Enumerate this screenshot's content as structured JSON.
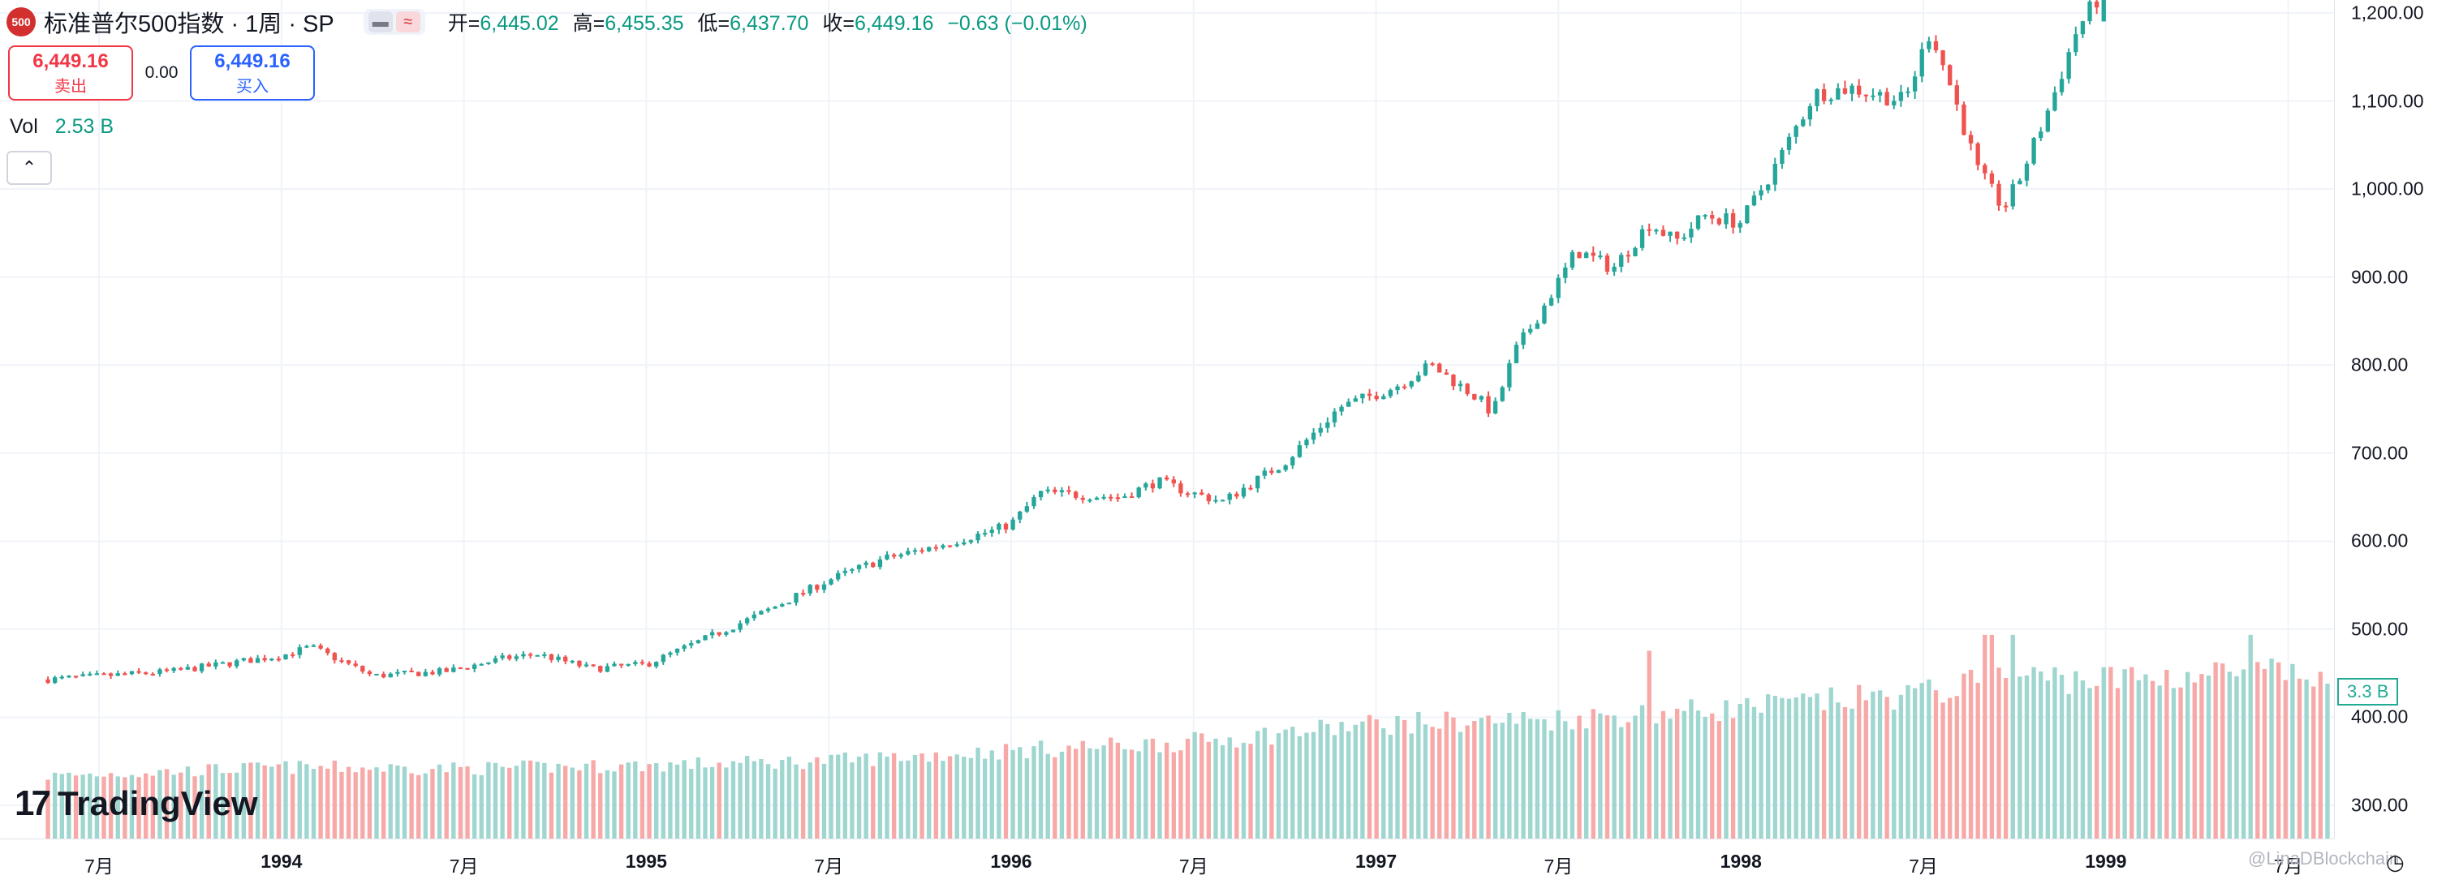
{
  "header": {
    "symbol_badge": "500",
    "title": "标准普尔500指数 · 1周 · SP",
    "mode_icons": [
      "dash-icon",
      "wave-icon"
    ],
    "ohlc": [
      {
        "label": "开=",
        "value": "6,445.02"
      },
      {
        "label": "高=",
        "value": "6,455.35"
      },
      {
        "label": "低=",
        "value": "6,437.70"
      },
      {
        "label": "收=",
        "value": "6,449.16"
      },
      {
        "label": "",
        "value": "−0.63 (−0.01%)"
      }
    ]
  },
  "trade": {
    "sell_price": "6,449.16",
    "sell_label": "卖出",
    "spread": "0.00",
    "buy_price": "6,449.16",
    "buy_label": "买入"
  },
  "volume": {
    "label": "Vol",
    "value": "2.53 B",
    "axis_tag": "3.3 B"
  },
  "logo": {
    "mark": "17",
    "text": "TradingView"
  },
  "watermark": "@LinaDBlockchain",
  "colors": {
    "up": "#26a69a",
    "down": "#ef5350",
    "vol_up": "#9fd6d0",
    "vol_down": "#f7a9a7",
    "grid": "#f0f3fa"
  },
  "chart_data": {
    "type": "candlestick",
    "title": "标准普尔500指数 · 1周 · SP",
    "interval": "1周",
    "xlabel": "",
    "ylabel": "",
    "price_axis": {
      "ticks": [
        "1,200.00",
        "1,100.00",
        "1,000.00",
        "900.00",
        "800.00",
        "700.00",
        "600.00",
        "500.00",
        "400.00",
        "300.00"
      ],
      "ylim": [
        285,
        1218
      ]
    },
    "time_axis": [
      {
        "label": "7月",
        "year": false,
        "x": 1993.5
      },
      {
        "label": "1994",
        "year": true,
        "x": 1994.0
      },
      {
        "label": "7月",
        "year": false,
        "x": 1994.5
      },
      {
        "label": "1995",
        "year": true,
        "x": 1995.0
      },
      {
        "label": "7月",
        "year": false,
        "x": 1995.5
      },
      {
        "label": "1996",
        "year": true,
        "x": 1996.0
      },
      {
        "label": "7月",
        "year": false,
        "x": 1996.5
      },
      {
        "label": "1997",
        "year": true,
        "x": 1997.0
      },
      {
        "label": "7月",
        "year": false,
        "x": 1997.5
      },
      {
        "label": "1998",
        "year": true,
        "x": 1998.0
      },
      {
        "label": "7月",
        "year": false,
        "x": 1998.5
      },
      {
        "label": "1999",
        "year": true,
        "x": 1999.0
      },
      {
        "label": "7月",
        "year": false,
        "x": 1999.5
      }
    ],
    "x_range": [
      1993.36,
      1999.65
    ],
    "price_anchors": [
      [
        1993.36,
        443
      ],
      [
        1993.7,
        452
      ],
      [
        1994.0,
        470
      ],
      [
        1994.08,
        480
      ],
      [
        1994.25,
        447
      ],
      [
        1994.45,
        452
      ],
      [
        1994.6,
        466
      ],
      [
        1994.7,
        472
      ],
      [
        1994.85,
        455
      ],
      [
        1995.0,
        460
      ],
      [
        1995.15,
        487
      ],
      [
        1995.3,
        515
      ],
      [
        1995.5,
        556
      ],
      [
        1995.65,
        580
      ],
      [
        1995.8,
        595
      ],
      [
        1995.95,
        612
      ],
      [
        1996.0,
        620
      ],
      [
        1996.08,
        655
      ],
      [
        1996.3,
        650
      ],
      [
        1996.4,
        668
      ],
      [
        1996.5,
        654
      ],
      [
        1996.58,
        645
      ],
      [
        1996.75,
        690
      ],
      [
        1996.9,
        752
      ],
      [
        1997.05,
        775
      ],
      [
        1997.15,
        800
      ],
      [
        1997.28,
        762
      ],
      [
        1997.32,
        745
      ],
      [
        1997.38,
        815
      ],
      [
        1997.45,
        860
      ],
      [
        1997.55,
        930
      ],
      [
        1997.65,
        910
      ],
      [
        1997.75,
        962
      ],
      [
        1997.82,
        940
      ],
      [
        1997.9,
        970
      ],
      [
        1998.0,
        962
      ],
      [
        1998.1,
        1030
      ],
      [
        1998.2,
        1108
      ],
      [
        1998.3,
        1115
      ],
      [
        1998.45,
        1100
      ],
      [
        1998.52,
        1182
      ],
      [
        1998.58,
        1110
      ],
      [
        1998.65,
        1020
      ],
      [
        1998.72,
        978
      ],
      [
        1998.76,
        1008
      ],
      [
        1998.85,
        1098
      ],
      [
        1998.92,
        1180
      ],
      [
        1998.98,
        1218
      ],
      [
        1999.1,
        1235
      ],
      [
        1999.65,
        1240
      ]
    ],
    "volume_anchors": [
      [
        1993.36,
        0.98
      ],
      [
        1994.0,
        1.12
      ],
      [
        1994.5,
        1.1
      ],
      [
        1995.0,
        1.15
      ],
      [
        1995.5,
        1.22
      ],
      [
        1996.0,
        1.38
      ],
      [
        1996.5,
        1.52
      ],
      [
        1997.0,
        1.8
      ],
      [
        1997.5,
        1.88
      ],
      [
        1998.0,
        2.05
      ],
      [
        1998.5,
        2.28
      ],
      [
        1998.75,
        2.55
      ],
      [
        1999.0,
        2.5
      ],
      [
        1999.4,
        2.62
      ],
      [
        1999.65,
        2.48
      ]
    ],
    "volume_spikes": [
      [
        1997.75,
        2.95
      ],
      [
        1998.68,
        3.2
      ],
      [
        1998.75,
        3.2
      ],
      [
        1999.4,
        3.2
      ]
    ],
    "volume_axis_max": 3.3,
    "legend": "none",
    "grid": true
  }
}
